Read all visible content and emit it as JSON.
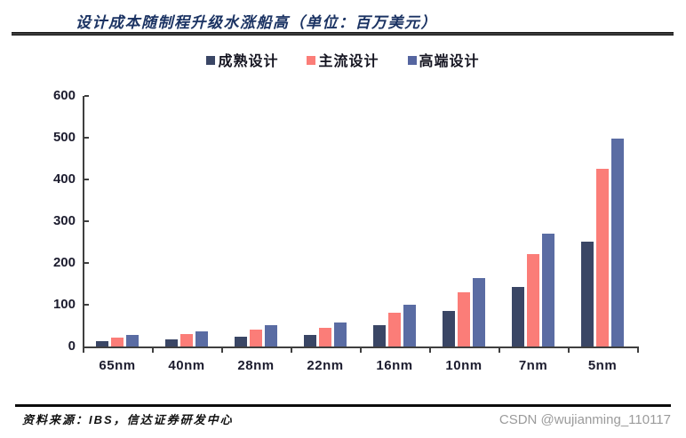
{
  "title": "设计成本随制程升级水涨船高（单位：百万美元）",
  "legend": [
    {
      "label": "成熟设计",
      "color": "#3A4665"
    },
    {
      "label": "主流设计",
      "color": "#FB7D78"
    },
    {
      "label": "高端设计",
      "color": "#5565A0"
    }
  ],
  "chart_data": {
    "type": "bar",
    "title": "设计成本随制程升级水涨船高（单位：百万美元）",
    "categories": [
      "65nm",
      "40nm",
      "28nm",
      "22nm",
      "16nm",
      "10nm",
      "7nm",
      "5nm"
    ],
    "series": [
      {
        "name": "成熟设计",
        "color": "#3A4665",
        "values": [
          13,
          17,
          24,
          28,
          51,
          86,
          143,
          252
        ]
      },
      {
        "name": "主流设计",
        "color": "#FB7D78",
        "values": [
          21,
          30,
          41,
          45,
          80,
          130,
          222,
          426
        ]
      },
      {
        "name": "高端设计",
        "color": "#5A6CA3",
        "values": [
          28,
          36,
          51,
          58,
          100,
          163,
          271,
          497
        ]
      }
    ],
    "xlabel": "",
    "ylabel": "",
    "ylim": [
      0,
      600
    ],
    "yticks": [
      0,
      100,
      200,
      300,
      400,
      500,
      600
    ],
    "grid": false,
    "legend_position": "top"
  },
  "footer": {
    "source": "资料来源：IBS，信达证券研发中心",
    "watermark": "CSDN @wujianming_110117"
  }
}
